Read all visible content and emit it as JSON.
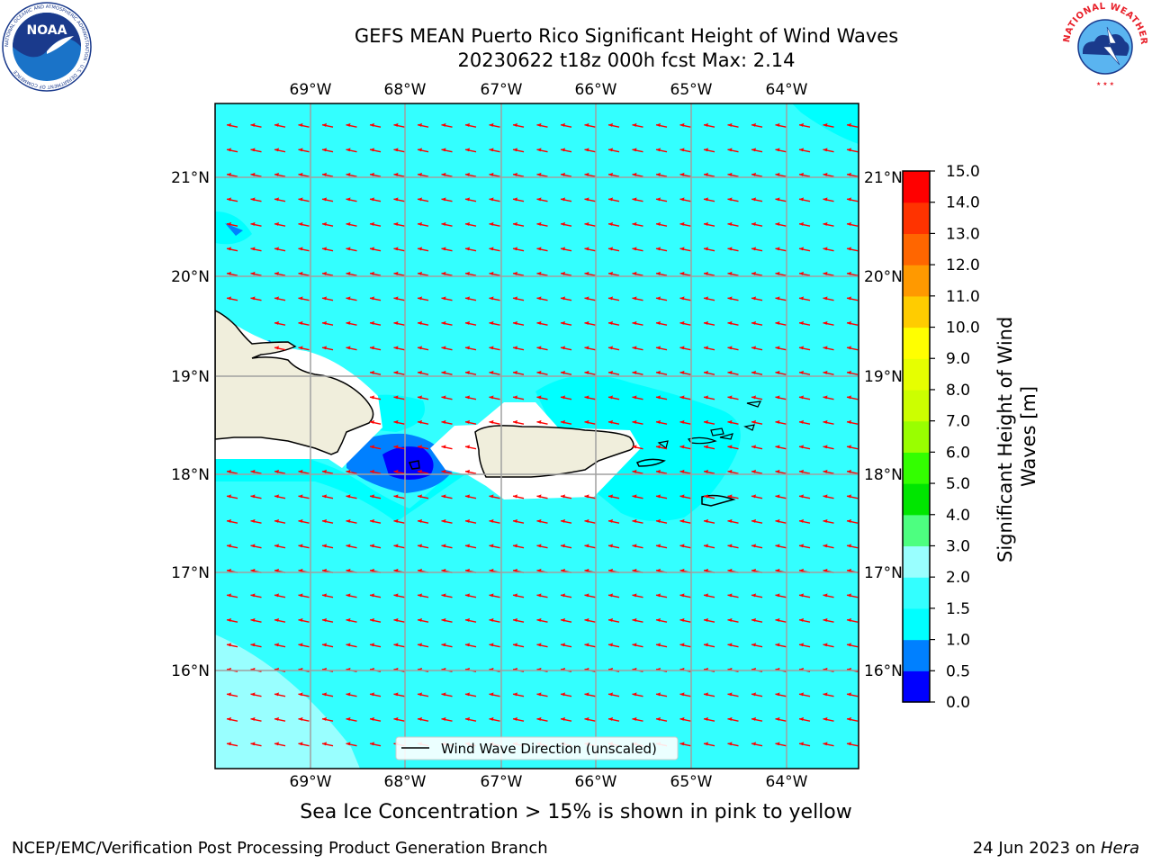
{
  "header": {
    "title_line1": "GEFS MEAN Puerto Rico Significant Height of Wind Waves",
    "title_line2": "20230622 t18z 000h fcst   Max: 2.14"
  },
  "logos": {
    "left": {
      "text": "NOAA",
      "ring_text": "NATIONAL OCEANIC AND ATMOSPHERIC ADMINISTRATION · U.S. DEPARTMENT OF COMMERCE"
    },
    "right": {
      "ring_text": "NATIONAL WEATHER SERVICE"
    }
  },
  "map": {
    "lon_labels": [
      "69°W",
      "68°W",
      "67°W",
      "66°W",
      "65°W",
      "64°W"
    ],
    "lat_labels": [
      "21°N",
      "20°N",
      "19°N",
      "18°N",
      "17°N",
      "16°N"
    ],
    "legend_text": "Wind Wave Direction (unscaled)",
    "colors": {
      "ocean_main": "#33ffff",
      "ocean_light": "#99ffff",
      "ocean_mid": "#00ffff",
      "land": "#f0eedc",
      "arrow": "#ff0000"
    }
  },
  "colorbar": {
    "title": "Significant Height of Wind Waves [m]",
    "ticks": [
      "0.0",
      "0.5",
      "1.0",
      "1.5",
      "2.0",
      "3.0",
      "4.0",
      "5.0",
      "6.0",
      "7.0",
      "8.0",
      "9.0",
      "10.0",
      "11.0",
      "12.0",
      "13.0",
      "14.0",
      "15.0"
    ],
    "colors": [
      "#0000ff",
      "#0080ff",
      "#00ffff",
      "#33ffff",
      "#99ffff",
      "#4dff80",
      "#00e600",
      "#33ff00",
      "#99ff00",
      "#ccff00",
      "#e6ff00",
      "#ffff00",
      "#ffcc00",
      "#ff9900",
      "#ff6600",
      "#ff3300",
      "#ff0000"
    ]
  },
  "notes": {
    "sea_ice": "Sea Ice Concentration > 15% is shown in pink to yellow"
  },
  "footer": {
    "left": "NCEP/EMC/Verification Post Processing Product Generation Branch",
    "right_prefix": "24 Jun 2023 on ",
    "right_host": "Hera"
  }
}
